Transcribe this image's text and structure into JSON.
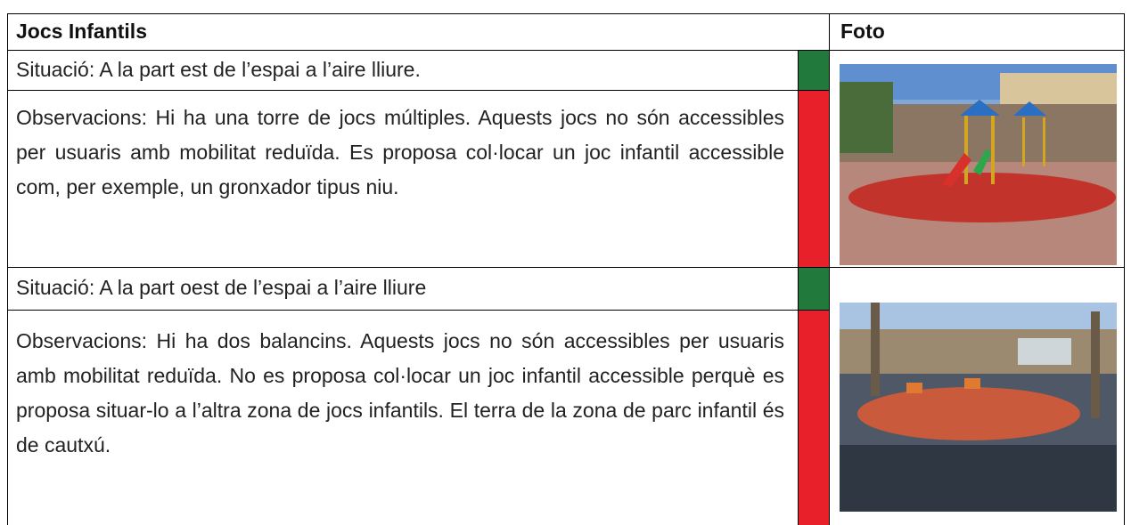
{
  "header": {
    "title": "Jocs Infantils",
    "photo": "Foto"
  },
  "rows": [
    {
      "situation": "Situació: A la part est de l’espai a l’aire lliure.",
      "observations": "Observacions: Hi ha una torre de jocs múltiples.  Aquests jocs no són accessibles per usuaris amb mobilitat reduïda. Es proposa col·locar un joc infantil accessible com, per exemple, un gronxador tipus niu."
    },
    {
      "situation": "Situació: A la part oest de l’espai a l’aire lliure",
      "observations": "Observacions:  Hi ha dos balancins.  Aquests jocs no són accessibles per usuaris amb mobilitat reduïda.  No es proposa col·locar un joc infantil accessible perquè es proposa situar-lo a l’altra zona de jocs infantils. El terra de la zona de parc infantil és de cautxú."
    }
  ]
}
